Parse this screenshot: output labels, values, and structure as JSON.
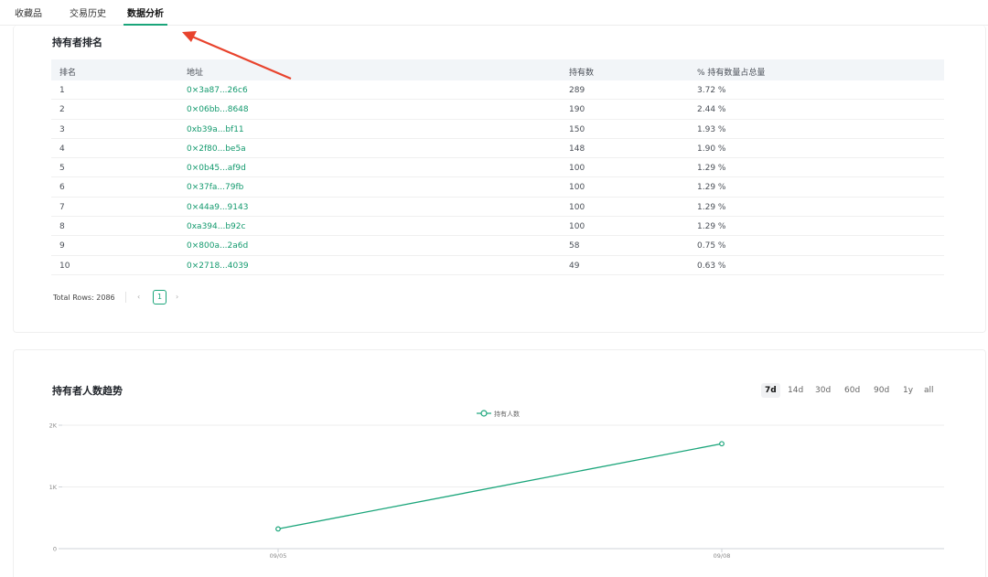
{
  "tabs": [
    {
      "label": "收藏品",
      "active": false
    },
    {
      "label": "交易历史",
      "active": false
    },
    {
      "label": "数据分析",
      "active": true
    }
  ],
  "holders": {
    "title": "持有者排名",
    "columns": [
      "排名",
      "地址",
      "持有数",
      "% 持有数量占总量"
    ],
    "rows": [
      {
        "rank": "1",
        "address": "0×3a87...26c6",
        "holding": "289",
        "percent": "3.72 %"
      },
      {
        "rank": "2",
        "address": "0×06bb...8648",
        "holding": "190",
        "percent": "2.44 %"
      },
      {
        "rank": "3",
        "address": "0xb39a...bf11",
        "holding": "150",
        "percent": "1.93 %"
      },
      {
        "rank": "4",
        "address": "0×2f80...be5a",
        "holding": "148",
        "percent": "1.90 %"
      },
      {
        "rank": "5",
        "address": "0×0b45...af9d",
        "holding": "100",
        "percent": "1.29 %"
      },
      {
        "rank": "6",
        "address": "0×37fa...79fb",
        "holding": "100",
        "percent": "1.29 %"
      },
      {
        "rank": "7",
        "address": "0×44a9...9143",
        "holding": "100",
        "percent": "1.29 %"
      },
      {
        "rank": "8",
        "address": "0xa394...b92c",
        "holding": "100",
        "percent": "1.29 %"
      },
      {
        "rank": "9",
        "address": "0×800a...2a6d",
        "holding": "58",
        "percent": "0.75 %"
      },
      {
        "rank": "10",
        "address": "0×2718...4039",
        "holding": "49",
        "percent": "0.63 %"
      }
    ],
    "pagination": {
      "total_label": "Total Rows: 2086",
      "prev": "‹",
      "page": "1",
      "next": "›"
    }
  },
  "trend": {
    "title": "持有者人数趋势",
    "ranges": [
      {
        "label": "7d",
        "active": true
      },
      {
        "label": "14d",
        "active": false
      },
      {
        "label": "30d",
        "active": false
      },
      {
        "label": "60d",
        "active": false
      },
      {
        "label": "90d",
        "active": false
      },
      {
        "label": "1y",
        "active": false
      },
      {
        "label": "all",
        "active": false
      }
    ]
  },
  "colors": {
    "accent": "#1aa57a",
    "arrow": "#e8432d"
  },
  "chart_data": {
    "type": "line",
    "title": "",
    "xlabel": "",
    "ylabel": "",
    "categories": [
      "09/05",
      "09/08"
    ],
    "series": [
      {
        "name": "持有人数",
        "values": [
          320,
          1700
        ]
      }
    ],
    "ylim": [
      0,
      2000
    ],
    "yticks": [
      "0",
      "1K",
      "2K"
    ],
    "grid": true,
    "legend": "top-center"
  }
}
